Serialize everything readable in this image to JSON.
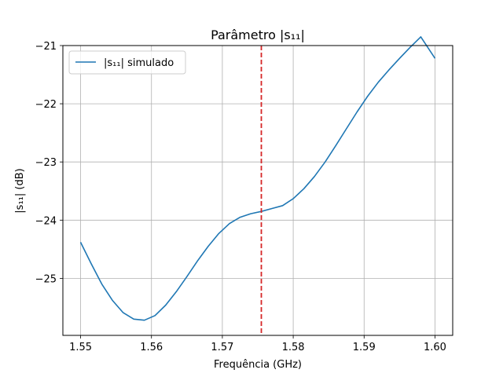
{
  "chart_data": {
    "type": "line",
    "title": "Parâmetro |s₁₁|",
    "xlabel": "Frequência (GHz)",
    "ylabel": "|s₁₁| (dB)",
    "xlim": [
      1.5475,
      1.6025
    ],
    "ylim": [
      -25.98,
      -21.0
    ],
    "xticks": [
      1.55,
      1.56,
      1.57,
      1.58,
      1.59,
      1.6
    ],
    "xtick_labels": [
      "1.55",
      "1.56",
      "1.57",
      "1.58",
      "1.59",
      "1.60"
    ],
    "yticks": [
      -25,
      -24,
      -23,
      -22,
      -21
    ],
    "ytick_labels": [
      "−25",
      "−24",
      "−23",
      "−22",
      "−21"
    ],
    "grid": true,
    "legend_position": "top-left",
    "series": [
      {
        "name": "|s₁₁| simulado",
        "color": "#1f77b4",
        "style": "solid",
        "x": [
          1.55,
          1.5515,
          1.553,
          1.5545,
          1.556,
          1.5575,
          1.559,
          1.5605,
          1.562,
          1.5635,
          1.565,
          1.5665,
          1.568,
          1.5695,
          1.571,
          1.5725,
          1.574,
          1.5755,
          1.577,
          1.5785,
          1.58,
          1.5815,
          1.583,
          1.5845,
          1.586,
          1.5875,
          1.589,
          1.5905,
          1.592,
          1.5935,
          1.595,
          1.5965,
          1.598,
          1.6
        ],
        "y": [
          -24.38,
          -24.75,
          -25.1,
          -25.38,
          -25.59,
          -25.7,
          -25.72,
          -25.64,
          -25.46,
          -25.23,
          -24.97,
          -24.7,
          -24.45,
          -24.23,
          -24.06,
          -23.95,
          -23.89,
          -23.85,
          -23.8,
          -23.75,
          -23.63,
          -23.46,
          -23.25,
          -23.0,
          -22.72,
          -22.43,
          -22.14,
          -21.87,
          -21.63,
          -21.42,
          -21.22,
          -21.03,
          -20.85,
          -21.22
        ]
      }
    ],
    "vline": {
      "x": 1.5755,
      "color": "#d62728",
      "style": "dashed"
    }
  }
}
